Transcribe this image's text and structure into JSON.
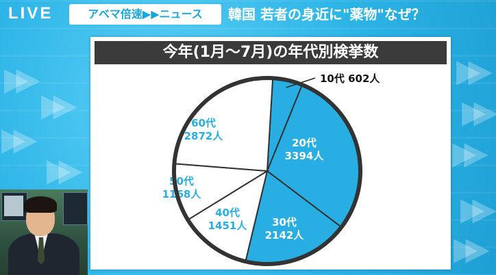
{
  "broadcast": {
    "live_label": "LIVE",
    "show_name": "アベマ倍速▶▶ニュース",
    "headline": "韓国 若者の身近に\"薬物\"なぜ？"
  },
  "chart_data": {
    "type": "pie",
    "title": "今年(1月～7月)の年代別検挙数",
    "slices": [
      {
        "label": "10代",
        "value": 602,
        "value_text": "602人",
        "color": "#29aee3"
      },
      {
        "label": "20代",
        "value": 3394,
        "value_text": "3394人",
        "color": "#29aee3"
      },
      {
        "label": "30代",
        "value": 2142,
        "value_text": "2142人",
        "color": "#29aee3"
      },
      {
        "label": "40代",
        "value": 1451,
        "value_text": "1451人",
        "color": "#ffffff"
      },
      {
        "label": "50代",
        "value": 1168,
        "value_text": "1168人",
        "color": "#ffffff"
      },
      {
        "label": "60代",
        "value": 2872,
        "value_text": "2872人",
        "color": "#ffffff"
      }
    ],
    "label_colors": {
      "on_blue": "#ffffff",
      "on_white": "#29aee3"
    },
    "legend": "none"
  },
  "colors": {
    "accent": "#29aee3",
    "title_bar": "#3b3b3b",
    "outline": "#333333"
  }
}
